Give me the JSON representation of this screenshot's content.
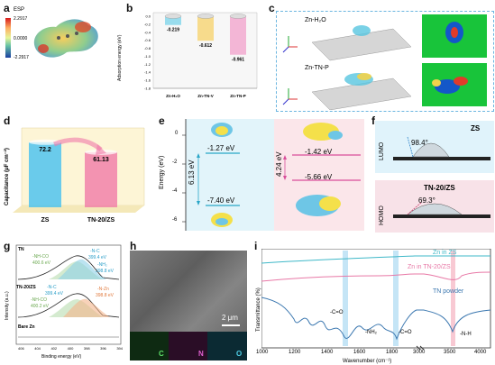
{
  "panels": {
    "a": "a",
    "b": "b",
    "c": "c",
    "d": "d",
    "e": "e",
    "f": "f",
    "g": "g",
    "h": "h",
    "i": "i"
  },
  "panel_a": {
    "esp_title": "ESP",
    "esp_max": "2.2917",
    "esp_mid": "0.0000",
    "esp_min": "-2.2917",
    "colors": [
      "#d7191c",
      "#fdae61",
      "#ffffbf",
      "#abdda4",
      "#2b83ba",
      "#1a3fa0"
    ]
  },
  "chart_data": [
    {
      "type": "bar",
      "id": "b",
      "ylabel": "Adsorption energy (eV)",
      "ylim": [
        -1.8,
        0.0
      ],
      "ticks": [
        "0.0",
        "-0.2",
        "-0.4",
        "-0.6",
        "-0.8",
        "-1.0",
        "-1.2",
        "-1.4",
        "-1.6",
        "-1.8"
      ],
      "categories": [
        "Zn-H₂O",
        "Zn-TN-V",
        "Zn-TN-P"
      ],
      "values": [
        -0.219,
        -0.612,
        -0.961
      ],
      "value_labels": [
        "-0.219",
        "-0.612",
        "-0.961"
      ],
      "colors": [
        "#59c9e6",
        "#f7c845",
        "#f08bbf"
      ]
    },
    {
      "type": "bar",
      "id": "d",
      "ylabel": "Capacitance (μF cm⁻²)",
      "categories": [
        "ZS",
        "TN-20/ZS"
      ],
      "values": [
        72.2,
        61.13
      ],
      "value_labels": [
        "72.2",
        "61.13"
      ],
      "colors": [
        "#45c0f0",
        "#f07aa8"
      ]
    },
    {
      "type": "line",
      "id": "i",
      "xlabel": "Wavenumber (cm⁻¹)",
      "ylabel": "Transmittance (%)",
      "xticks": [
        "1000",
        "1200",
        "1400",
        "1600",
        "1800",
        "3000",
        "3500",
        "4000"
      ],
      "series": [
        {
          "name": "Zn in ZS",
          "color": "#3fb8c8"
        },
        {
          "name": "Zn in TN-20/ZS",
          "color": "#e878a6"
        },
        {
          "name": "TN powder",
          "color": "#3c78b0"
        }
      ],
      "annotations": [
        "-C=O",
        "-NH₂",
        "-C=O",
        "-N-H"
      ]
    }
  ],
  "panel_c": {
    "label1": "Zn-H₂O",
    "label2": "Zn-TN-P"
  },
  "panel_e": {
    "ylabel": "Energy (eV)",
    "yticks": [
      "0",
      "-2",
      "-4",
      "-6"
    ],
    "lumo1": "-1.27 eV",
    "homo1": "-7.40 eV",
    "gap1": "6.13 eV",
    "lumo2": "-1.42 eV",
    "homo2": "-5.66 eV",
    "gap2": "4.24 eV"
  },
  "panel_f": {
    "lumo": "LUMO",
    "homo": "HOMO",
    "zs": "ZS",
    "angle1": "98.4°",
    "tn": "TN-20/ZS",
    "angle2": "69.3°"
  },
  "panel_g": {
    "ylabel": "Intensity (a.u.)",
    "xlabel": "Binding energy (eV)",
    "xticks": [
      "406",
      "404",
      "402",
      "400",
      "398",
      "396",
      "394"
    ],
    "tn": "TN",
    "tnzs": "TN-20/ZS",
    "bare": "Bare Zn",
    "nhco1": "-NH-CO",
    "nhco1v": "400.6 eV",
    "nc1": "-N-C",
    "nc1v": "399.4 eV",
    "nh2": "-NH₂",
    "nh2v": "398.8 eV",
    "nc2": "-N-C",
    "nc2v": "399.4 eV",
    "nzn": "-N-Zn",
    "nznv": "398.8 eV",
    "nhco2": "-NH-CO",
    "nhco2v": "400.2 eV"
  },
  "panel_h": {
    "scale": "2 μm",
    "el_c": "C",
    "el_n": "N",
    "el_o": "O"
  }
}
